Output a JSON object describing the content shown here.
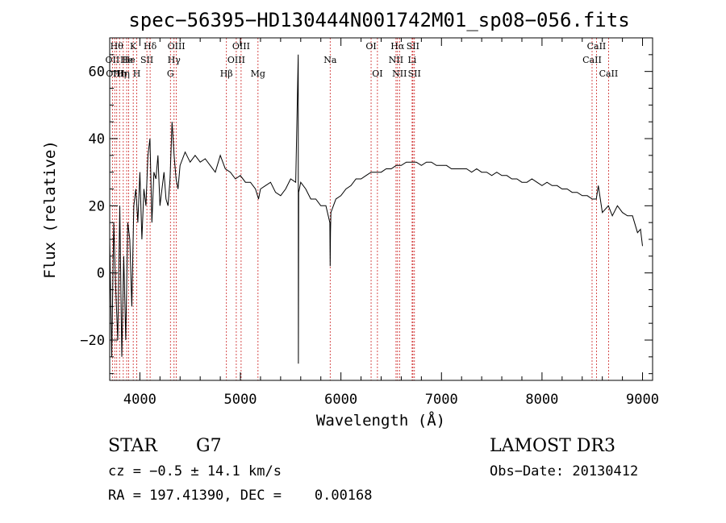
{
  "chart_data": {
    "type": "line",
    "title": "spec−56395−HD130444N001742M01_sp08−056.fits",
    "xlabel": "Wavelength (Å)",
    "ylabel": "Flux (relative)",
    "xlim": [
      3700,
      9100
    ],
    "ylim": [
      -32,
      70
    ],
    "x_ticks": [
      4000,
      5000,
      6000,
      7000,
      8000,
      9000
    ],
    "x_tick_labels": [
      "4000",
      "5000",
      "6000",
      "7000",
      "8000",
      "9000"
    ],
    "y_ticks": [
      -20,
      0,
      20,
      40,
      60
    ],
    "y_tick_labels": [
      "−20",
      "0",
      "20",
      "40",
      "60"
    ],
    "grid": false,
    "line_color": "#000000",
    "marker_color": "#cc2222",
    "series": [
      {
        "x": [
          3700,
          3720,
          3740,
          3760,
          3780,
          3800,
          3820,
          3840,
          3860,
          3880,
          3900,
          3920,
          3940,
          3960,
          3980,
          4000,
          4020,
          4040,
          4060,
          4080,
          4100,
          4120,
          4140,
          4160,
          4180,
          4200,
          4220,
          4240,
          4260,
          4280,
          4300,
          4320,
          4340,
          4360,
          4380,
          4400,
          4450,
          4500,
          4550,
          4600,
          4650,
          4700,
          4750,
          4800,
          4850,
          4900,
          4950,
          5000,
          5050,
          5100,
          5150,
          5180,
          5200,
          5250,
          5300,
          5350,
          5400,
          5450,
          5500,
          5550,
          5575,
          5577,
          5580,
          5600,
          5650,
          5700,
          5750,
          5800,
          5850,
          5890,
          5893,
          5896,
          5900,
          5950,
          6000,
          6050,
          6100,
          6150,
          6200,
          6250,
          6300,
          6350,
          6400,
          6450,
          6500,
          6550,
          6563,
          6600,
          6650,
          6700,
          6750,
          6800,
          6850,
          6900,
          6950,
          7000,
          7050,
          7100,
          7150,
          7200,
          7250,
          7300,
          7350,
          7400,
          7450,
          7500,
          7550,
          7600,
          7650,
          7700,
          7750,
          7800,
          7850,
          7900,
          7950,
          8000,
          8050,
          8100,
          8150,
          8200,
          8250,
          8300,
          8350,
          8400,
          8450,
          8500,
          8540,
          8560,
          8600,
          8660,
          8700,
          8750,
          8800,
          8850,
          8900,
          8950,
          8980,
          9000
        ],
        "y": [
          10,
          -25,
          15,
          -5,
          -20,
          20,
          -25,
          5,
          -20,
          15,
          10,
          -10,
          20,
          25,
          15,
          30,
          10,
          25,
          20,
          35,
          40,
          15,
          30,
          28,
          35,
          20,
          25,
          30,
          22,
          20,
          28,
          45,
          35,
          28,
          25,
          32,
          36,
          33,
          35,
          33,
          34,
          32,
          30,
          35,
          31,
          30,
          28,
          29,
          27,
          27,
          25,
          22,
          25,
          26,
          27,
          24,
          23,
          25,
          28,
          27,
          65,
          -27,
          24,
          27,
          25,
          22,
          22,
          20,
          20,
          15,
          2,
          12,
          18,
          22,
          23,
          25,
          26,
          28,
          28,
          29,
          30,
          30,
          30,
          31,
          31,
          32,
          32,
          32,
          33,
          33,
          33,
          32,
          33,
          33,
          32,
          32,
          32,
          31,
          31,
          31,
          31,
          30,
          31,
          30,
          30,
          29,
          30,
          29,
          29,
          28,
          28,
          27,
          27,
          28,
          27,
          26,
          27,
          26,
          26,
          25,
          25,
          24,
          24,
          23,
          23,
          22,
          22,
          26,
          18,
          20,
          17,
          20,
          18,
          17,
          17,
          12,
          13,
          8
        ]
      }
    ],
    "line_markers": [
      {
        "wavelength": 3727,
        "label": "OII",
        "row": 1
      },
      {
        "wavelength": 3750,
        "label": "OIII",
        "row": 2
      },
      {
        "wavelength": 3770,
        "label": "Hθ",
        "row": 0
      },
      {
        "wavelength": 3798,
        "label": "Hη",
        "row": 2
      },
      {
        "wavelength": 3835,
        "label": "Hη",
        "row": 2
      },
      {
        "wavelength": 3869,
        "label": "He",
        "row": 1
      },
      {
        "wavelength": 3889,
        "label": "He",
        "row": 1
      },
      {
        "wavelength": 3934,
        "label": "K",
        "row": 0
      },
      {
        "wavelength": 3969,
        "label": "H",
        "row": 2
      },
      {
        "wavelength": 4070,
        "label": "SII",
        "row": 1
      },
      {
        "wavelength": 4102,
        "label": "Hδ",
        "row": 0
      },
      {
        "wavelength": 4304,
        "label": "G",
        "row": 2
      },
      {
        "wavelength": 4340,
        "label": "Hγ",
        "row": 1
      },
      {
        "wavelength": 4363,
        "label": "OIII",
        "row": 0
      },
      {
        "wavelength": 4861,
        "label": "Hβ",
        "row": 2
      },
      {
        "wavelength": 4959,
        "label": "OIII",
        "row": 1
      },
      {
        "wavelength": 5007,
        "label": "OIII",
        "row": 0
      },
      {
        "wavelength": 5175,
        "label": "Mg",
        "row": 2
      },
      {
        "wavelength": 5893,
        "label": "Na",
        "row": 1
      },
      {
        "wavelength": 6300,
        "label": "OI",
        "row": 0
      },
      {
        "wavelength": 6363,
        "label": "OI",
        "row": 2
      },
      {
        "wavelength": 6548,
        "label": "NII",
        "row": 1
      },
      {
        "wavelength": 6563,
        "label": "Hα",
        "row": 0
      },
      {
        "wavelength": 6583,
        "label": "NII",
        "row": 2
      },
      {
        "wavelength": 6708,
        "label": "Li",
        "row": 1
      },
      {
        "wavelength": 6716,
        "label": "SII",
        "row": 0
      },
      {
        "wavelength": 6731,
        "label": "SII",
        "row": 2
      },
      {
        "wavelength": 8498,
        "label": "CaII",
        "row": 1
      },
      {
        "wavelength": 8542,
        "label": "CaII",
        "row": 0
      },
      {
        "wavelength": 8662,
        "label": "CaII",
        "row": 2
      }
    ]
  },
  "info": {
    "object_class": "STAR",
    "subclass": "G7",
    "survey": "LAMOST DR3",
    "redshift": "cz = −0.5 ± 14.1 km/s",
    "obs_date": "Obs−Date: 20130412",
    "coords": "RA = 197.41390, DEC =    0.00168"
  }
}
